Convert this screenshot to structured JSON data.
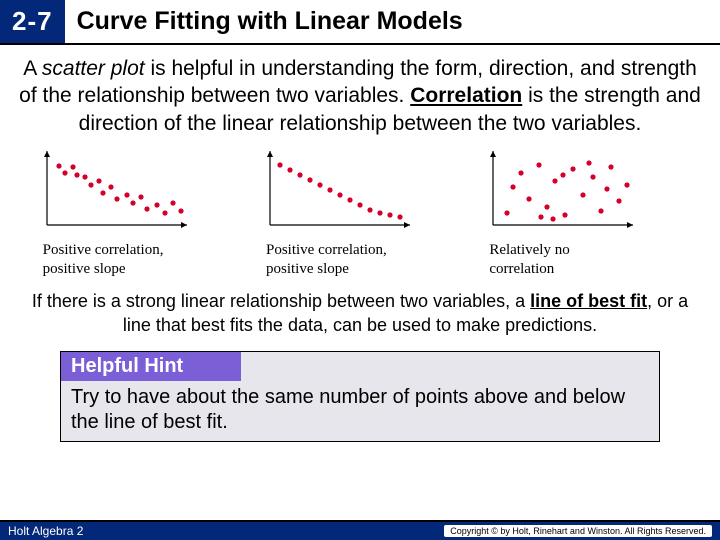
{
  "header": {
    "badge": "2-7",
    "title": "Curve Fitting with Linear Models"
  },
  "intro": {
    "a": "A ",
    "scatter": "scatter plot",
    "b": " is helpful in understanding the form, direction, and strength of the relationship between two variables. ",
    "corr": "Correlation",
    "c": " is the strength and direction of the linear relationship between the two variables."
  },
  "plots": {
    "axis_color": "#000000",
    "dot_color": "#d4002a",
    "bg": "#ffffff",
    "p1": {
      "caption_l1": "Positive correlation,",
      "caption_l2": "positive slope",
      "points": [
        [
          12,
          59
        ],
        [
          18,
          52
        ],
        [
          26,
          58
        ],
        [
          30,
          50
        ],
        [
          38,
          48
        ],
        [
          44,
          40
        ],
        [
          52,
          44
        ],
        [
          56,
          32
        ],
        [
          64,
          38
        ],
        [
          70,
          26
        ],
        [
          80,
          30
        ],
        [
          86,
          22
        ],
        [
          94,
          28
        ],
        [
          100,
          16
        ],
        [
          110,
          20
        ],
        [
          118,
          12
        ],
        [
          126,
          22
        ],
        [
          134,
          14
        ]
      ]
    },
    "p2": {
      "caption_l1": "Positive correlation,",
      "caption_l2": "positive slope",
      "points": [
        [
          10,
          60
        ],
        [
          20,
          55
        ],
        [
          30,
          50
        ],
        [
          40,
          45
        ],
        [
          50,
          40
        ],
        [
          60,
          35
        ],
        [
          70,
          30
        ],
        [
          80,
          25
        ],
        [
          90,
          20
        ],
        [
          100,
          15
        ],
        [
          110,
          12
        ],
        [
          120,
          10
        ],
        [
          130,
          8
        ]
      ]
    },
    "p3": {
      "caption_l1": "Relatively no",
      "caption_l2": "correlation",
      "points": [
        [
          14,
          12
        ],
        [
          28,
          52
        ],
        [
          36,
          26
        ],
        [
          46,
          60
        ],
        [
          54,
          18
        ],
        [
          62,
          44
        ],
        [
          72,
          10
        ],
        [
          80,
          56
        ],
        [
          90,
          30
        ],
        [
          100,
          48
        ],
        [
          108,
          14
        ],
        [
          118,
          58
        ],
        [
          126,
          24
        ],
        [
          134,
          40
        ],
        [
          20,
          38
        ],
        [
          48,
          8
        ],
        [
          70,
          50
        ],
        [
          96,
          62
        ],
        [
          114,
          36
        ],
        [
          60,
          6
        ]
      ]
    }
  },
  "mid": {
    "a": "If there is a strong linear relationship between two variables, a ",
    "lob": "line of best fit",
    "b": ", or a line that best fits the data, can be used to make predictions."
  },
  "hint": {
    "head": "Helpful Hint",
    "body": "Try to have about the same number of points above and below the line of best fit."
  },
  "footer": {
    "left": "Holt Algebra 2",
    "right": "Copyright © by Holt, Rinehart and Winston. All Rights Reserved."
  }
}
